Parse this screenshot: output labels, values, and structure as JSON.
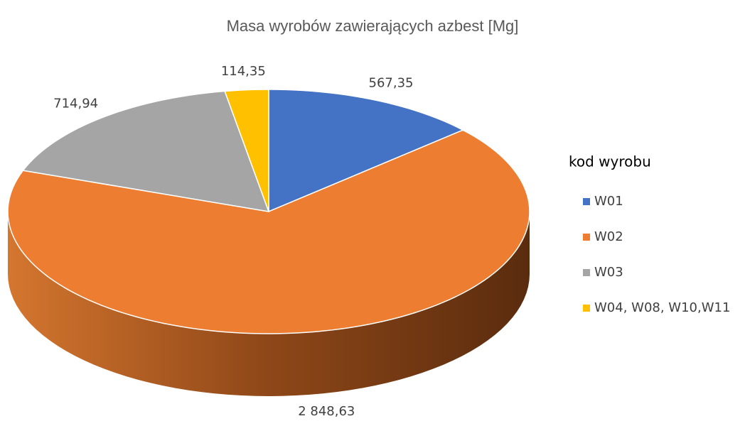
{
  "chart_data": {
    "type": "pie",
    "title": "Masa wyrobów zawierających azbest [Mg]",
    "legend_title": "kod wyrobu",
    "categories": [
      "W01",
      "W02",
      "W03",
      "W04, W08, W10,W11"
    ],
    "values": [
      567.35,
      2848.63,
      714.94,
      114.35
    ],
    "value_labels": [
      "567,35",
      "2 848,63",
      "714,94",
      "114,35"
    ],
    "colors": [
      "#4472c4",
      "#ed7d31",
      "#a5a5a5",
      "#ffc000"
    ],
    "legend": "right",
    "three_d": true
  }
}
